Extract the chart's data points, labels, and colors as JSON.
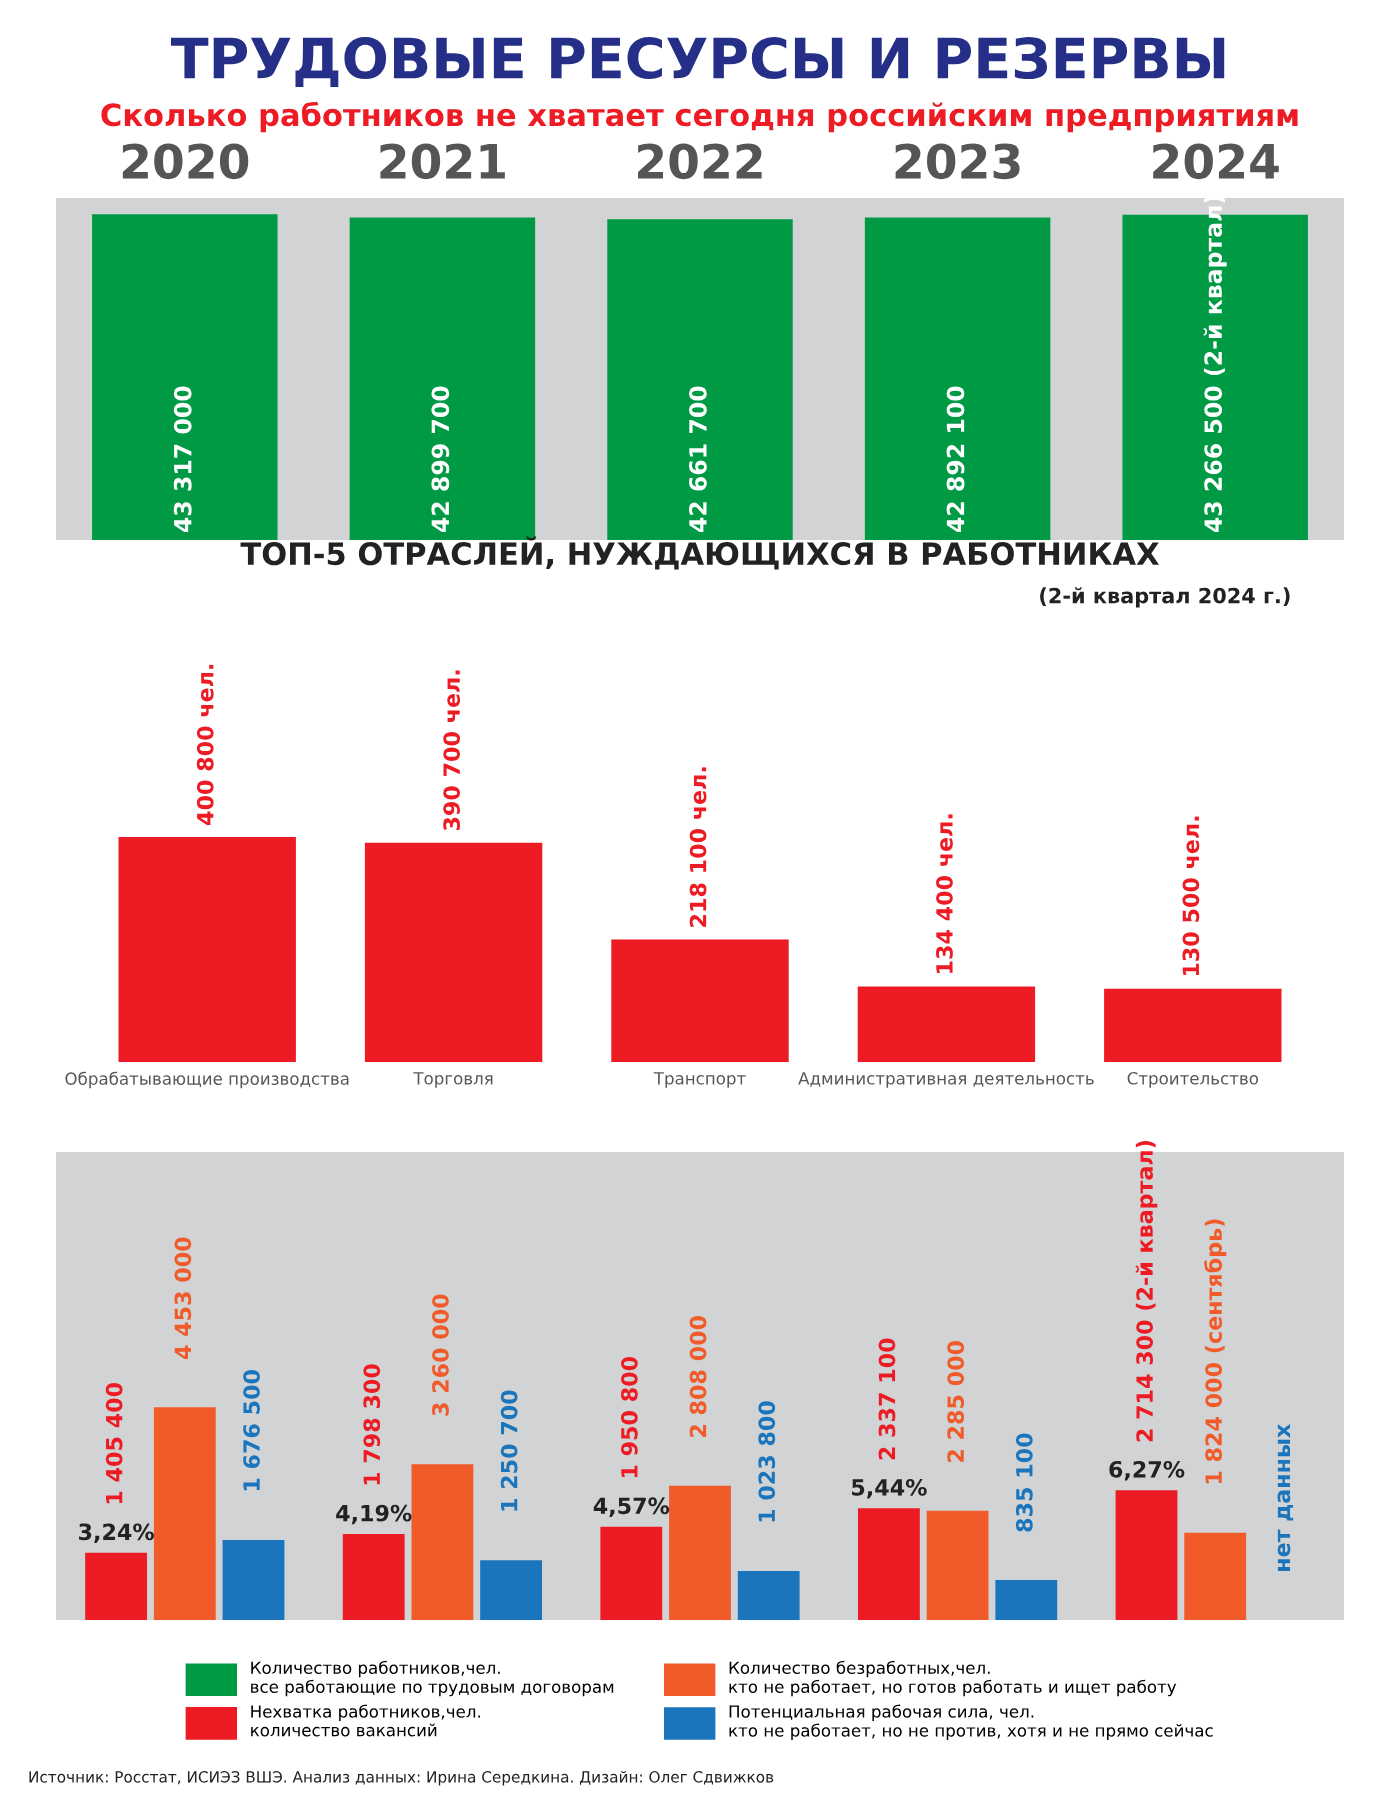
{
  "chart_data": [
    {
      "type": "bar",
      "title": "ТРУДОВЫЕ РЕСУРСЫ И РЕЗЕРВЫ",
      "subtitle": "Сколько работников не хватает сегодня российским предприятиям",
      "categories": [
        "2020",
        "2021",
        "2022",
        "2023",
        "2024"
      ],
      "series": [
        {
          "name": "Количество работников,чел.\nвсе работающие по трудовым договорам",
          "color": "#009a44",
          "values": [
            43317000,
            42899700,
            42661700,
            42892100,
            43266500
          ],
          "value_labels": [
            "43 317 000",
            "42 899 700",
            "42 661 700",
            "42 892 100",
            "43 266 500 (2-й квартал)"
          ]
        }
      ],
      "legend": "bottom"
    },
    {
      "type": "bar",
      "categories": [
        "2020",
        "2021",
        "2022",
        "2023",
        "2024"
      ],
      "tick_labels": false,
      "legend": "bottom",
      "series": [
        {
          "name": "Нехватка работников,чел.\nколичество вакансий",
          "color": "#ed1c24",
          "values": [
            1405400,
            1798300,
            1950800,
            2337100,
            2714300
          ],
          "value_labels": [
            "1 405 400",
            "1 798 300",
            "1 950 800",
            "2 337 100",
            "2 714 300 (2-й квартал)"
          ]
        },
        {
          "name": "Количество безработных,чел.\nкто не работает, но готов работать и ищет работу",
          "color": "#f15a29",
          "values": [
            4453000,
            3260000,
            2808000,
            2285000,
            1824000
          ],
          "value_labels": [
            "4 453 000",
            "3 260 000",
            "2 808 000",
            "2 285 000",
            "1 824 000 (сентябрь)"
          ]
        },
        {
          "name": "Потенциальная рабочая сила, чел.\nкто не работает, но не против, хотя и не прямо сейчас",
          "color": "#1b75bc",
          "values": [
            1676500,
            1250700,
            1023800,
            835100,
            null
          ],
          "value_labels": [
            "1 676 500",
            "1 250 700",
            "1 023 800",
            "835 100",
            "нет данных"
          ]
        }
      ],
      "annotations": [
        "3,24%",
        "4,19%",
        "4,57%",
        "5,44%",
        "6,27%",
        "Источник: Росстат, ИСИЭЗ ВШЭ. Анализ данных: Ирина Середкина. Дизайн: Олег Сдвижков"
      ]
    },
    {
      "type": "bar",
      "title": "ТОП-5 ОТРАСЛЕЙ, НУЖДАЮЩИХСЯ В РАБОТНИКАХ",
      "subtitle": "(2-й квартал 2024 г.)",
      "categories": [
        "Обрабатывающие производства",
        "Торговля",
        "Транспорт",
        "Административная деятельность",
        "Строительство"
      ],
      "values": [
        400800,
        390700,
        218100,
        134400,
        130500
      ],
      "color": "#ed1c24",
      "value_labels": [
        "400 800 чел.",
        "390 700 чел.",
        "218 100 чел.",
        "134 400 чел.",
        "130 500 чел."
      ]
    }
  ]
}
